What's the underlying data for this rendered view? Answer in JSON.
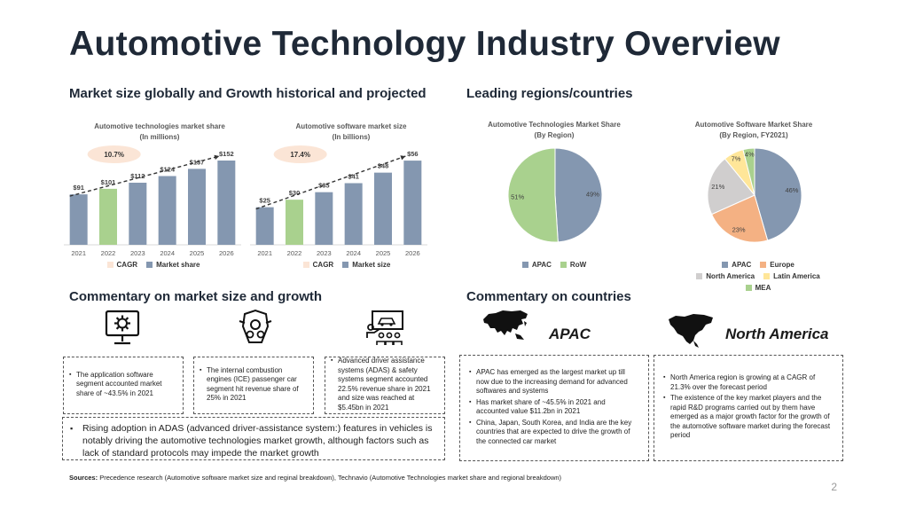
{
  "page": {
    "title": "Automotive Technology Industry Overview",
    "page_number": "2"
  },
  "sections": {
    "market_size": "Market size globally and Growth historical and projected",
    "regions": "Leading regions/countries",
    "commentary_market": "Commentary on market size and growth",
    "commentary_countries": "Commentary on countries"
  },
  "colors": {
    "bar": "#8497b0",
    "bar_highlight": "#a9d18e",
    "cagr_bubble": "#fbe5d6",
    "apac": "#8497b0",
    "row": "#a9d18e",
    "europe": "#f4b183",
    "north_america": "#d0cece",
    "latin_america": "#ffe699",
    "mea": "#a9d18e"
  },
  "chart_data": [
    {
      "type": "bar",
      "title": "Automotive technologies market share",
      "subtitle": "(In millions)",
      "categories": [
        "2021",
        "2022",
        "2023",
        "2024",
        "2025",
        "2026"
      ],
      "values": [
        91,
        101,
        112,
        124,
        137,
        152
      ],
      "value_labels": [
        "$91",
        "$101",
        "$112",
        "$124",
        "$137",
        "$152"
      ],
      "highlight_index": 1,
      "cagr_label": "10.7%",
      "trendline": true,
      "ylim": [
        0,
        160
      ],
      "legend": [
        "CAGR",
        "Market share"
      ]
    },
    {
      "type": "bar",
      "title": "Automotive software market size",
      "subtitle": "(In billions)",
      "categories": [
        "2021",
        "2022",
        "2023",
        "2024",
        "2025",
        "2026"
      ],
      "values": [
        25,
        30,
        35,
        41,
        48,
        56
      ],
      "value_labels": [
        "$25",
        "$30",
        "$35",
        "$41",
        "$48",
        "$56"
      ],
      "highlight_index": 1,
      "cagr_label": "17.4%",
      "trendline": true,
      "ylim": [
        0,
        59
      ],
      "legend": [
        "CAGR",
        "Market size"
      ]
    },
    {
      "type": "pie",
      "title": "Automotive Technologies Market Share",
      "subtitle": "(By Region)",
      "slices": [
        {
          "label": "APAC",
          "value": 49,
          "display": "49%"
        },
        {
          "label": "RoW",
          "value": 51,
          "display": "51%"
        }
      ],
      "legend_placement": "bottom"
    },
    {
      "type": "pie",
      "title": "Automotive Software Market Share",
      "subtitle": "(By Region, FY2021)",
      "slices": [
        {
          "label": "APAC",
          "value": 46,
          "display": "46%"
        },
        {
          "label": "Europe",
          "value": 23,
          "display": "23%"
        },
        {
          "label": "North America",
          "value": 21,
          "display": "21%"
        },
        {
          "label": "Latin America",
          "value": 7,
          "display": "7%"
        },
        {
          "label": "MEA",
          "value": 4,
          "display": "4%"
        }
      ],
      "legend_placement": "bottom"
    }
  ],
  "commentary": {
    "box1": "The application software segment accounted market share of ~43.5% in 2021",
    "box2": "The internal combustion engines (ICE) passenger car segment hit revenue share of 25% in 2021",
    "box3": "Advanced driver assistance systems (ADAS) & safety systems segment accounted 22.5% revenue share in 2021 and size was reached at $5.45bn in 2021",
    "adas": "Rising adoption in ADAS (advanced driver-assistance system:) features in vehicles is notably driving the automotive technologies market growth, although factors such as lack of standard protocols may impede the market growth"
  },
  "countries": {
    "apac_label": "APAC",
    "na_label": "North America",
    "apac_points": [
      "APAC has emerged as the largest market up till now due to the increasing demand for advanced softwares and systems",
      "Has market share of ~45.5% in 2021 and accounted value $11.2bn in 2021",
      "China, Japan, South Korea, and India are the key countries that are expected to drive the growth of the connected car market"
    ],
    "na_points": [
      "North America region is growing at a CAGR of 21.3% over the forecast period",
      "The existence of the key market players and the rapid R&D programs carried out by them have emerged as a major growth factor for the growth of the automotive software market during the forecast period"
    ]
  },
  "sources": {
    "label": "Sources:",
    "text": "Precedence research (Automotive software market size and reginal breakdown), Technavio (Automotive Technologies market share and regional breakdown)"
  },
  "icons": [
    "monitor-gear-icon",
    "engine-icon",
    "car-presentation-icon",
    "asia-map-icon",
    "north-america-map-icon"
  ]
}
